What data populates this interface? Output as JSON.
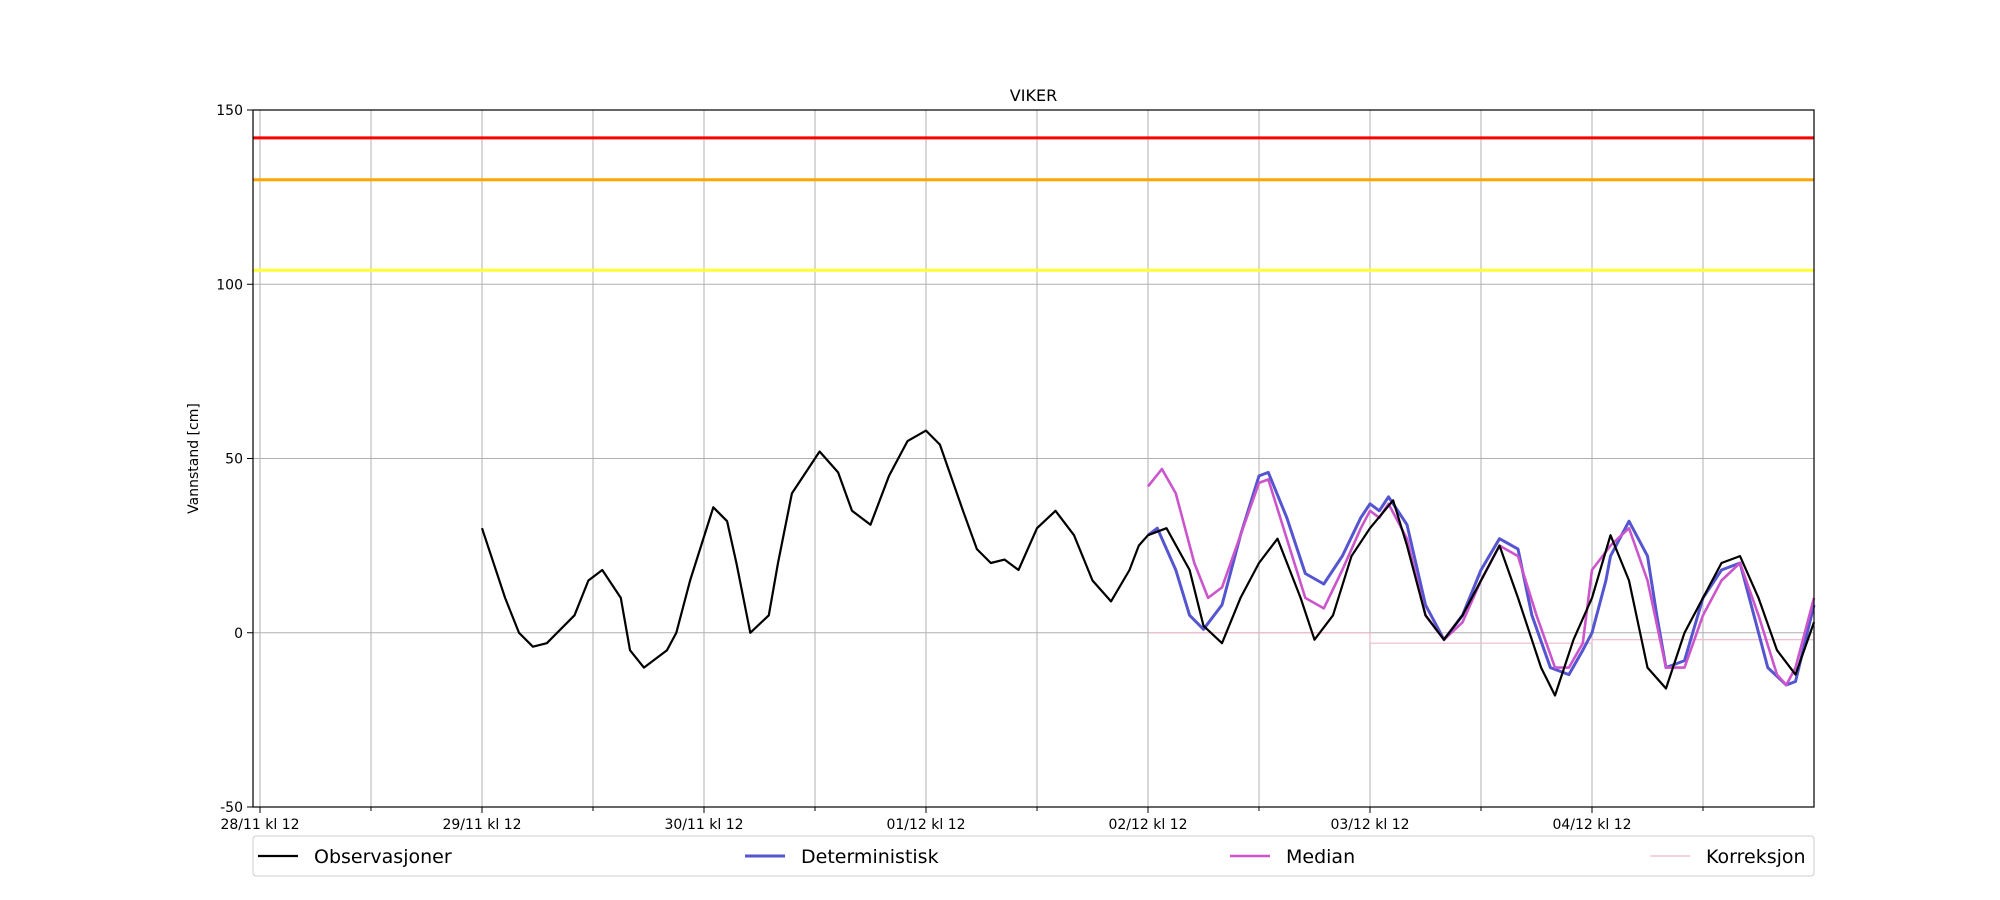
{
  "chart_data": {
    "type": "line",
    "title": "VIKER",
    "xlabel": "",
    "ylabel": "Vannstand [cm]",
    "x_unit": "hours since 28/11 kl 12",
    "xlim": [
      0,
      168
    ],
    "ylim": [
      -50,
      150
    ],
    "y_ticks": [
      -50,
      0,
      50,
      100,
      150
    ],
    "x_ticks": [
      {
        "x": 0,
        "label": "28/11 kl 12"
      },
      {
        "x": 24,
        "label": "29/11 kl 12"
      },
      {
        "x": 48,
        "label": "30/11 kl 12"
      },
      {
        "x": 72,
        "label": "01/12 kl 12"
      },
      {
        "x": 96,
        "label": "02/12 kl 12"
      },
      {
        "x": 120,
        "label": "03/12 kl 12"
      },
      {
        "x": 144,
        "label": "04/12 kl 12"
      }
    ],
    "x_minor_ticks": [
      12,
      36,
      60,
      84,
      108,
      132,
      156
    ],
    "grid": true,
    "legend_position": "bottom",
    "thresholds": [
      {
        "value": 142,
        "color": "#ff0000"
      },
      {
        "value": 130,
        "color": "#ffa500"
      },
      {
        "value": 104,
        "color": "#ffff33"
      }
    ],
    "series": [
      {
        "name": "Observasjoner",
        "color": "#000000",
        "x": [
          24,
          26.5,
          28,
          29.5,
          31,
          34,
          35.5,
          37,
          39,
          40,
          41.5,
          44,
          45,
          46.5,
          49,
          50.5,
          51.5,
          53,
          55,
          56,
          57.5,
          60.5,
          62.5,
          64,
          66,
          68,
          70,
          72,
          73.5,
          76,
          77.5,
          79,
          80.5,
          82,
          84,
          86,
          88,
          90,
          92,
          94,
          95,
          96,
          98,
          100.5,
          102,
          104,
          106,
          108,
          110,
          112.5,
          114,
          116,
          118,
          120,
          122.5,
          124,
          126,
          128,
          130,
          132,
          134,
          136,
          138.5,
          140,
          142,
          144,
          146,
          148,
          150,
          152,
          154,
          156,
          158,
          160,
          162,
          164,
          166,
          168
        ],
        "y": [
          30,
          10,
          0,
          -4,
          -3,
          5,
          15,
          18,
          10,
          -5,
          -10,
          -5,
          0,
          15,
          36,
          32,
          20,
          0,
          5,
          20,
          40,
          52,
          46,
          35,
          31,
          45,
          55,
          58,
          54,
          35,
          24,
          20,
          21,
          18,
          30,
          35,
          28,
          15,
          9,
          18,
          25,
          28,
          30,
          18,
          2,
          -3,
          10,
          20,
          27,
          10,
          -2,
          5,
          22,
          30,
          38,
          25,
          5,
          -2,
          5,
          15,
          25,
          10,
          -10,
          -18,
          -2,
          10,
          28,
          15,
          -10,
          -16,
          0,
          10,
          20,
          22,
          10,
          -5,
          -12,
          3
        ]
      },
      {
        "name": "Deterministisk",
        "color": "#5555d0",
        "x": [
          96,
          97,
          99,
          100.5,
          102,
          104,
          106,
          108,
          109,
          111,
          113,
          115,
          117,
          119,
          120,
          121,
          122,
          124,
          126,
          128,
          130,
          132,
          134,
          136,
          137.5,
          139.5,
          141.5,
          143,
          144,
          145.5,
          146,
          148,
          150,
          151,
          152,
          154,
          156,
          158,
          160,
          161,
          163,
          165,
          166,
          168
        ],
        "y": [
          28,
          30,
          18,
          5,
          1,
          8,
          28,
          45,
          46,
          33,
          17,
          14,
          22,
          33,
          37,
          35,
          39,
          31,
          8,
          -2,
          5,
          18,
          27,
          24,
          5,
          -10,
          -12,
          -5,
          0,
          15,
          22,
          32,
          22,
          5,
          -10,
          -8,
          10,
          18,
          20,
          10,
          -10,
          -15,
          -14,
          8
        ]
      },
      {
        "name": "Median",
        "color": "#cc55cc",
        "x": [
          96,
          97.5,
          99,
          101,
          102.5,
          104,
          106,
          108,
          109,
          111,
          113,
          115,
          117,
          119,
          120,
          121,
          122,
          124,
          126,
          128,
          130,
          132,
          134,
          136,
          138,
          140,
          141.5,
          143,
          144,
          146,
          148,
          150,
          152,
          154,
          156,
          158,
          160,
          162,
          164,
          165,
          166,
          168
        ],
        "y": [
          42,
          47,
          40,
          20,
          10,
          13,
          28,
          43,
          44,
          27,
          10,
          7,
          18,
          30,
          35,
          33,
          37,
          27,
          5,
          -2,
          3,
          15,
          25,
          22,
          5,
          -10,
          -10,
          -3,
          18,
          25,
          30,
          15,
          -10,
          -10,
          5,
          15,
          20,
          5,
          -12,
          -15,
          -10,
          10
        ]
      },
      {
        "name": "Korreksjon",
        "color": "#eeb8cc",
        "x": [
          96,
          120,
          120,
          144,
          144,
          168
        ],
        "y": [
          0,
          0,
          -3,
          -3,
          -2,
          -2
        ]
      }
    ]
  }
}
